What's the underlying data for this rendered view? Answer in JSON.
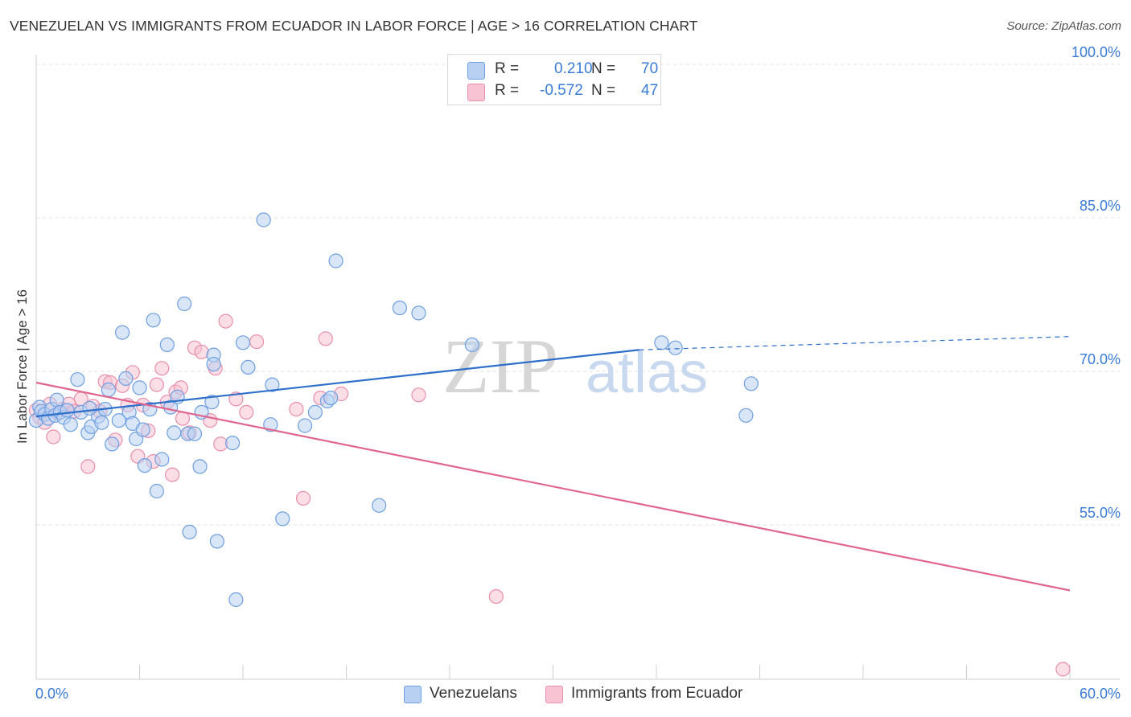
{
  "title": "VENEZUELAN VS IMMIGRANTS FROM ECUADOR IN LABOR FORCE | AGE > 16 CORRELATION CHART",
  "source": "Source: ZipAtlas.com",
  "watermark": {
    "zip": "ZIP",
    "atlas": "atlas"
  },
  "legend": {
    "rows": [
      {
        "r_label": "R =",
        "r_value": "0.210",
        "n_label": "N =",
        "n_value": "70"
      },
      {
        "r_label": "R =",
        "r_value": "-0.572",
        "n_label": "N =",
        "n_value": "47"
      }
    ]
  },
  "colors": {
    "blue_fill": "#b8d1f3",
    "blue_stroke": "#6f9fe0",
    "blue_line": "#2e6fca",
    "pink_fill": "#f8c3d2",
    "pink_stroke": "#e98fac",
    "pink_line": "#e0668f",
    "axis_text": "#3a7bd5",
    "grid": "#e2e2e2"
  },
  "chart_data": {
    "type": "scatter",
    "title": "VENEZUELAN VS IMMIGRANTS FROM ECUADOR IN LABOR FORCE | AGE > 16 CORRELATION CHART",
    "xlabel": "",
    "ylabel": "In Labor Force | Age > 16",
    "xlim": [
      0,
      60
    ],
    "ylim": [
      40,
      103
    ],
    "x_tick_labels": [
      "0.0%",
      "60.0%"
    ],
    "y_ticks": [
      55,
      70,
      85,
      100
    ],
    "y_tick_labels": [
      "55.0%",
      "70.0%",
      "85.0%",
      "100.0%"
    ],
    "legend_position": "top-center",
    "series": [
      {
        "name": "Venezuelans",
        "r": 0.21,
        "n": 70,
        "trend": {
          "x0": 0,
          "y0": 65.6,
          "x1": 35,
          "y1": 72.1,
          "dash_to_x": 60,
          "dash_to_y": 73.4
        },
        "points": [
          [
            0.0,
            65.2
          ],
          [
            0.2,
            66.5
          ],
          [
            0.3,
            66.1
          ],
          [
            0.5,
            65.8
          ],
          [
            0.7,
            65.4
          ],
          [
            0.9,
            66.3
          ],
          [
            1.1,
            65.7
          ],
          [
            1.2,
            67.2
          ],
          [
            1.4,
            66.0
          ],
          [
            1.6,
            65.5
          ],
          [
            1.8,
            66.2
          ],
          [
            2.0,
            64.8
          ],
          [
            2.4,
            69.2
          ],
          [
            2.6,
            66.0
          ],
          [
            3.0,
            64.0
          ],
          [
            3.2,
            64.6
          ],
          [
            3.6,
            65.6
          ],
          [
            3.8,
            65.0
          ],
          [
            4.0,
            66.3
          ],
          [
            4.2,
            68.2
          ],
          [
            4.4,
            62.9
          ],
          [
            4.8,
            65.2
          ],
          [
            5.0,
            73.8
          ],
          [
            5.2,
            69.3
          ],
          [
            5.4,
            66.0
          ],
          [
            5.6,
            64.9
          ],
          [
            5.8,
            63.4
          ],
          [
            6.0,
            68.4
          ],
          [
            6.2,
            64.3
          ],
          [
            6.3,
            60.8
          ],
          [
            6.6,
            66.3
          ],
          [
            6.8,
            75.0
          ],
          [
            7.0,
            58.3
          ],
          [
            7.3,
            61.4
          ],
          [
            7.6,
            72.6
          ],
          [
            7.8,
            66.5
          ],
          [
            8.0,
            64.0
          ],
          [
            8.2,
            67.5
          ],
          [
            8.6,
            76.6
          ],
          [
            8.8,
            63.9
          ],
          [
            8.9,
            54.3
          ],
          [
            9.2,
            63.9
          ],
          [
            9.5,
            60.7
          ],
          [
            10.2,
            67.0
          ],
          [
            10.3,
            71.6
          ],
          [
            10.3,
            70.7
          ],
          [
            10.5,
            53.4
          ],
          [
            11.4,
            63.0
          ],
          [
            11.6,
            47.7
          ],
          [
            12.0,
            72.8
          ],
          [
            12.3,
            70.4
          ],
          [
            13.2,
            84.8
          ],
          [
            13.6,
            64.8
          ],
          [
            13.7,
            68.7
          ],
          [
            14.3,
            55.6
          ],
          [
            15.6,
            64.7
          ],
          [
            16.2,
            66.0
          ],
          [
            16.9,
            67.1
          ],
          [
            17.1,
            67.4
          ],
          [
            17.4,
            80.8
          ],
          [
            19.9,
            56.9
          ],
          [
            21.1,
            76.2
          ],
          [
            22.2,
            75.7
          ],
          [
            25.3,
            72.6
          ],
          [
            36.3,
            72.8
          ],
          [
            37.1,
            72.3
          ],
          [
            41.2,
            65.7
          ],
          [
            41.5,
            68.8
          ],
          [
            3.1,
            66.4
          ],
          [
            9.6,
            66.0
          ]
        ]
      },
      {
        "name": "Immigrants from Ecuador",
        "r": -0.572,
        "n": 47,
        "trend": {
          "x0": 0,
          "y0": 68.9,
          "x1": 60,
          "y1": 48.6
        },
        "points": [
          [
            0.0,
            66.2
          ],
          [
            0.2,
            65.5
          ],
          [
            0.5,
            65.0
          ],
          [
            0.8,
            66.8
          ],
          [
            1.0,
            63.6
          ],
          [
            1.3,
            65.9
          ],
          [
            1.5,
            66.3
          ],
          [
            1.9,
            66.8
          ],
          [
            2.2,
            66.1
          ],
          [
            2.6,
            67.3
          ],
          [
            3.0,
            60.7
          ],
          [
            3.3,
            66.6
          ],
          [
            3.7,
            66.1
          ],
          [
            4.0,
            69.0
          ],
          [
            4.3,
            68.9
          ],
          [
            4.6,
            63.3
          ],
          [
            5.0,
            68.6
          ],
          [
            5.3,
            66.7
          ],
          [
            5.6,
            69.9
          ],
          [
            5.9,
            61.7
          ],
          [
            6.2,
            66.7
          ],
          [
            6.5,
            64.2
          ],
          [
            6.8,
            61.2
          ],
          [
            7.0,
            68.7
          ],
          [
            7.3,
            70.3
          ],
          [
            7.6,
            67.0
          ],
          [
            7.9,
            59.9
          ],
          [
            8.1,
            68.0
          ],
          [
            8.4,
            68.4
          ],
          [
            8.5,
            65.4
          ],
          [
            8.9,
            64.0
          ],
          [
            9.2,
            72.3
          ],
          [
            9.6,
            71.9
          ],
          [
            10.1,
            65.2
          ],
          [
            10.4,
            70.3
          ],
          [
            10.7,
            62.9
          ],
          [
            11.0,
            74.9
          ],
          [
            11.6,
            67.3
          ],
          [
            12.2,
            66.0
          ],
          [
            12.8,
            72.9
          ],
          [
            15.1,
            66.3
          ],
          [
            15.5,
            57.6
          ],
          [
            16.5,
            67.4
          ],
          [
            16.8,
            73.2
          ],
          [
            17.7,
            67.8
          ],
          [
            22.2,
            67.7
          ],
          [
            26.7,
            48.0
          ]
        ]
      }
    ],
    "extra_points_note": "one pink point at bottom-right edge",
    "edge_point": {
      "series": "Immigrants from Ecuador",
      "x": 59.6,
      "y": 40.9
    }
  },
  "bottom_legend": [
    {
      "label": "Venezuelans"
    },
    {
      "label": "Immigrants from Ecuador"
    }
  ]
}
